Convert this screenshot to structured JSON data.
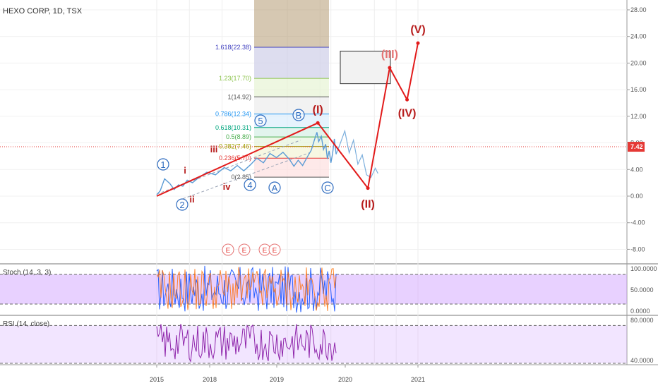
{
  "header": {
    "symbol_title": "HEXO CORP, 1D, TSX"
  },
  "colors": {
    "price": "#5b9bd5",
    "wave": "#e21b1b",
    "minor_wave": "#b71c1c",
    "stoch_k": "#2962ff",
    "stoch_d": "#ff6d00",
    "rsi": "#8e24aa",
    "osc_band": "#cc99ff",
    "price_tag": "#e53935",
    "projection_zone": "#b59a72"
  },
  "chart_data": [
    {
      "type": "line",
      "panel": "price",
      "title": "HEXO CORP, 1D, TSX",
      "ylim": [
        -10,
        30
      ],
      "y_ticks": [
        28,
        24,
        20,
        16,
        12,
        8,
        4,
        0,
        -4,
        -8
      ],
      "y_tick_labels": [
        "28.00",
        "24.00",
        "20.00",
        "16.00",
        "12.00",
        "8.00",
        "4.00",
        "0.00",
        "-4.00",
        "-8.00"
      ],
      "x_ticks": [
        "2015",
        "2018",
        "2019",
        "2020",
        "2021"
      ],
      "current_price": {
        "value": 7.42,
        "label": "7.42"
      },
      "series": [
        {
          "values": [
            [
              2015.0,
              0.2
            ],
            [
              2015.08,
              0.8
            ],
            [
              2015.18,
              2.6
            ],
            [
              2015.3,
              1.9
            ],
            [
              2015.4,
              1.0
            ],
            [
              2015.5,
              1.7
            ],
            [
              2015.6,
              1.5
            ],
            [
              2015.7,
              2.4
            ],
            [
              2015.82,
              2.0
            ],
            [
              2015.95,
              2.7
            ],
            [
              2016.15,
              3.6
            ],
            [
              2016.35,
              3.2
            ],
            [
              2016.55,
              4.3
            ],
            [
              2016.7,
              3.8
            ],
            [
              2016.85,
              4.6
            ],
            [
              2017.0,
              3.8
            ],
            [
              2017.15,
              4.7
            ],
            [
              2017.3,
              5.7
            ],
            [
              2017.45,
              5.0
            ],
            [
              2017.6,
              6.4
            ],
            [
              2017.75,
              5.8
            ],
            [
              2017.9,
              6.6
            ],
            [
              2018.05,
              5.5
            ],
            [
              2018.15,
              4.5
            ],
            [
              2018.25,
              5.4
            ],
            [
              2018.35,
              4.6
            ],
            [
              2018.45,
              5.8
            ],
            [
              2018.55,
              6.9
            ],
            [
              2018.62,
              8.4
            ],
            [
              2018.68,
              9.6
            ],
            [
              2018.72,
              8.2
            ],
            [
              2018.78,
              9.0
            ],
            [
              2018.83,
              7.0
            ],
            [
              2018.88,
              7.8
            ],
            [
              2018.92,
              5.6
            ],
            [
              2018.96,
              6.8
            ],
            [
              2019.0,
              5.0
            ],
            [
              2019.04,
              6.4
            ],
            [
              2019.08,
              8.6
            ],
            [
              2019.12,
              6.3
            ]
          ]
        },
        {
          "values": [
            [
              2019.12,
              6.3
            ],
            [
              2019.22,
              8.0
            ],
            [
              2019.32,
              9.8
            ],
            [
              2019.42,
              6.5
            ],
            [
              2019.52,
              8.4
            ],
            [
              2019.62,
              4.8
            ],
            [
              2019.72,
              6.2
            ],
            [
              2019.82,
              3.2
            ],
            [
              2019.92,
              2.8
            ],
            [
              2020.02,
              4.2
            ],
            [
              2020.08,
              3.4
            ]
          ]
        }
      ],
      "wave_path": [
        [
          2015.0,
          0.0
        ],
        [
          2018.7,
          11.0
        ],
        [
          2019.85,
          1.2
        ],
        [
          2020.35,
          19.3
        ],
        [
          2020.75,
          14.5
        ],
        [
          2021.0,
          23.0
        ]
      ],
      "waves": [
        {
          "label": "(I)",
          "x": 2018.7,
          "y": 11.0
        },
        {
          "label": "(II)",
          "x": 2019.85,
          "y": 1.2
        },
        {
          "label": "(III)",
          "x": 2020.35,
          "y": 19.3
        },
        {
          "label": "(IV)",
          "x": 2020.75,
          "y": 14.5
        },
        {
          "label": "(V)",
          "x": 2021.0,
          "y": 23.0
        }
      ],
      "minor_waves": [
        "i",
        "ii",
        "iii",
        "iv"
      ],
      "circled_waves": [
        "1",
        "2",
        "4",
        "5",
        "A",
        "B",
        "C"
      ],
      "event_markers": [
        "E",
        "E",
        "E",
        "E"
      ],
      "fibonacci_levels": [
        {
          "label": "1.618(22.38)",
          "price": 22.38,
          "color": "#3f3fbf"
        },
        {
          "label": "1.23(17.70)",
          "price": 17.7,
          "color": "#8bc34a"
        },
        {
          "label": "1(14.92)",
          "price": 14.92,
          "color": "#555555"
        },
        {
          "label": "0.786(12.34)",
          "price": 12.34,
          "color": "#2196f3"
        },
        {
          "label": "0.618(10.31)",
          "price": 10.31,
          "color": "#00a67e"
        },
        {
          "label": "0.5(8.89)",
          "price": 8.89,
          "color": "#4caf50"
        },
        {
          "label": "0.382(7.46)",
          "price": 7.46,
          "color": "#9e9e00"
        },
        {
          "label": "0.236(5.70)",
          "price": 5.7,
          "color": "#e53935"
        },
        {
          "label": "0(2.85)",
          "price": 2.85,
          "color": "#555555"
        }
      ]
    },
    {
      "type": "line",
      "panel": "oscillator",
      "title": "Stoch (14, 3, 3)",
      "ylim": [
        0,
        100
      ],
      "y_tick_labels": [
        "100.0000",
        "50.0000",
        "0.0000"
      ],
      "bands": [
        20,
        80
      ]
    },
    {
      "type": "line",
      "panel": "oscillator",
      "title": "RSI (14, close)",
      "ylim": [
        30,
        80
      ],
      "y_tick_labels": [
        "80.0000",
        "40.0000"
      ],
      "bands": [
        30,
        70
      ]
    }
  ]
}
